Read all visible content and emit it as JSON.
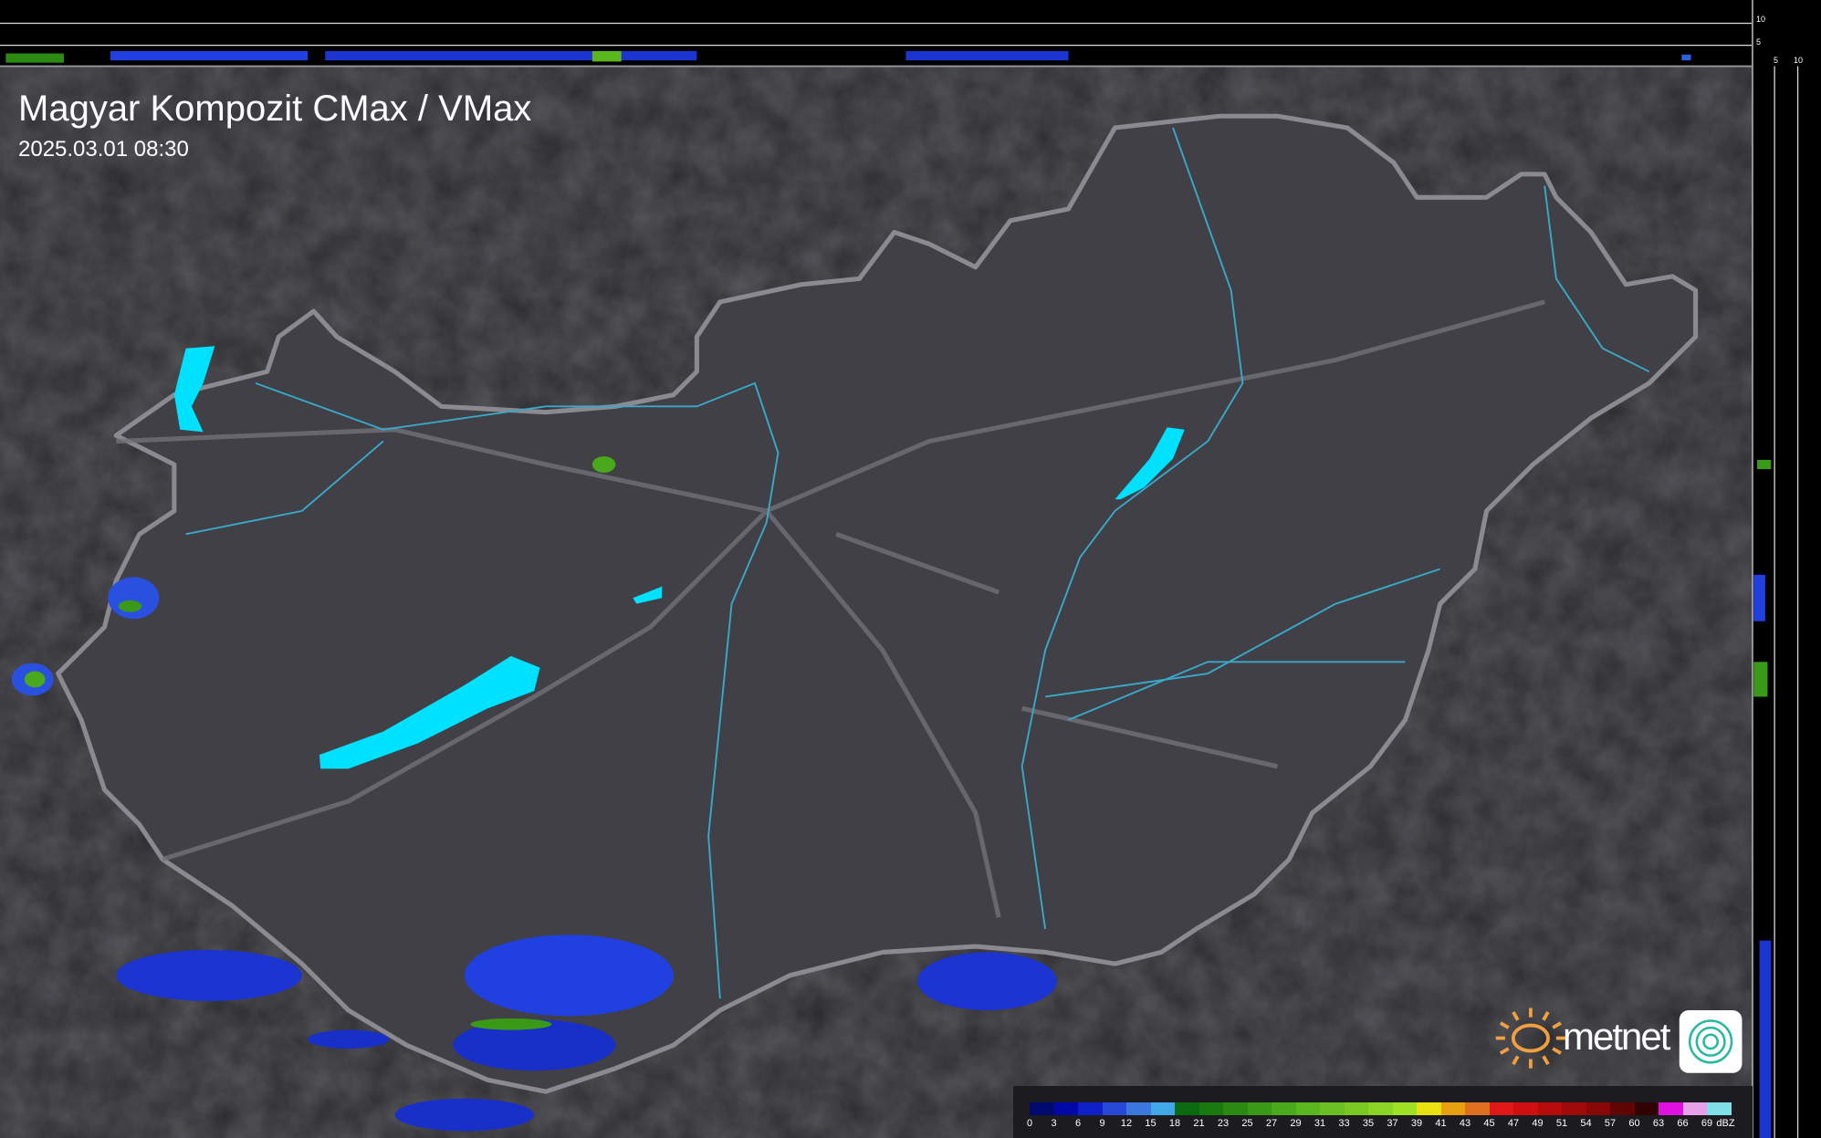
{
  "header": {
    "title": "Magyar Kompozit CMax / VMax",
    "timestamp": "2025.03.01 08:30"
  },
  "side_axes": {
    "top_panel_ticks": [
      "10",
      "5"
    ],
    "right_panel_ticks": [
      "5",
      "10"
    ]
  },
  "logo": {
    "brand": "metnet"
  },
  "legend": {
    "unit": "dBZ",
    "labels": [
      "0",
      "3",
      "6",
      "9",
      "12",
      "15",
      "18",
      "21",
      "23",
      "25",
      "27",
      "29",
      "31",
      "33",
      "35",
      "37",
      "39",
      "41",
      "43",
      "45",
      "47",
      "49",
      "51",
      "54",
      "57",
      "60",
      "63",
      "66",
      "69"
    ],
    "colors": [
      "#000a6e",
      "#0008a8",
      "#1020c8",
      "#2848d8",
      "#3a78e0",
      "#40a8e8",
      "#0a6a10",
      "#1a7a10",
      "#2a8a12",
      "#3a9a18",
      "#4aa81c",
      "#5ab81e",
      "#6ac020",
      "#7ac822",
      "#8ad426",
      "#a0e024",
      "#e8e010",
      "#e8a010",
      "#e07020",
      "#e01818",
      "#d01010",
      "#b80c0c",
      "#a00a0a",
      "#880808",
      "#600404",
      "#300202",
      "#e010e0",
      "#e8a0e8",
      "#80e0e8"
    ]
  },
  "colors": {
    "background": "#2a2a2e",
    "country_fill": "#3a3a40",
    "border": "#8a8a90",
    "rivers": "#3aa8c8",
    "lakes": "#00e0ff",
    "radar_light": "#2040e0",
    "radar_strong": "#3a9a18"
  }
}
